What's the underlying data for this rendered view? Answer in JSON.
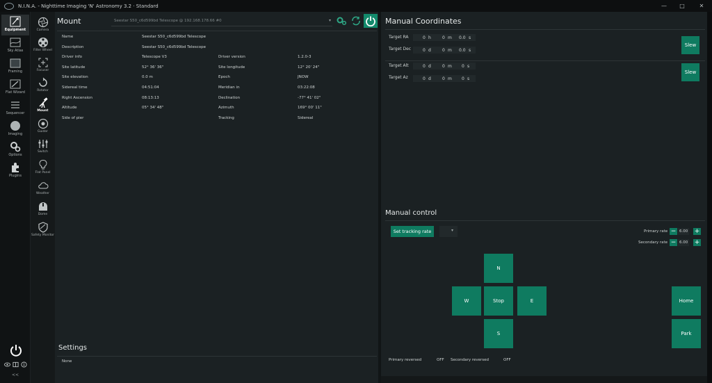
{
  "window": {
    "title": "N.I.N.A. - Nighttime Imaging 'N' Astronomy 3.2  ·  Standard",
    "minimize": "—",
    "maximize": "□",
    "close": "✕"
  },
  "main_nav": [
    {
      "label": "Equipment",
      "icon": "equipment-icon",
      "active": true
    },
    {
      "label": "Sky Atlas",
      "icon": "sky-atlas-icon"
    },
    {
      "label": "Framing",
      "icon": "framing-icon"
    },
    {
      "label": "Flat Wizard",
      "icon": "flat-wizard-icon"
    },
    {
      "label": "Sequencer",
      "icon": "sequencer-icon"
    },
    {
      "label": "Imaging",
      "icon": "imaging-icon"
    },
    {
      "label": "Options",
      "icon": "options-icon"
    },
    {
      "label": "Plugins",
      "icon": "plugins-icon"
    }
  ],
  "main_nav_bottom": {
    "collapse": "<<"
  },
  "sub_nav": [
    {
      "label": "Camera",
      "icon": "camera-icon"
    },
    {
      "label": "Filter Wheel",
      "icon": "filter-wheel-icon"
    },
    {
      "label": "Focuser",
      "icon": "focuser-icon"
    },
    {
      "label": "Rotator",
      "icon": "rotator-icon"
    },
    {
      "label": "Mount",
      "icon": "mount-icon",
      "active": true
    },
    {
      "label": "Guider",
      "icon": "guider-icon"
    },
    {
      "label": "Switch",
      "icon": "switch-icon"
    },
    {
      "label": "Flat Panel",
      "icon": "flat-panel-icon"
    },
    {
      "label": "Weather",
      "icon": "weather-icon"
    },
    {
      "label": "Dome",
      "icon": "dome-icon"
    },
    {
      "label": "Safety Monitor",
      "icon": "safety-monitor-icon"
    }
  ],
  "mount": {
    "title": "Mount",
    "device_selector": "Seestar S50_c6d599bd Telescope @ 192.168.178.66 #0",
    "settings_title": "Settings",
    "settings_value": "None",
    "info": {
      "name_label": "Name",
      "name": "Seestar S50_c6d599bd Telescope",
      "desc_label": "Description",
      "desc": "Seestar S50_c6d599bd Telescope",
      "driver_info_label": "Driver info",
      "driver_info": "Telescope V3",
      "driver_version_label": "Driver version",
      "driver_version": "1.2.0-3",
      "site_lat_label": "Site latitude",
      "site_lat": "52° 36' 36\"",
      "site_lon_label": "Site longitude",
      "site_lon": "12° 20' 24\"",
      "site_elev_label": "Site elevation",
      "site_elev": "0.0 m",
      "epoch_label": "Epoch",
      "epoch": "JNOW",
      "sidereal_label": "Sidereal time",
      "sidereal": "04:51:04",
      "meridian_label": "Meridian in",
      "meridian": "03:22:08",
      "ra_label": "Right Ascension",
      "ra": "08:13:13",
      "dec_label": "Declination",
      "dec": "-77° 41' 02\"",
      "alt_label": "Altitude",
      "alt": "05° 34' 48\"",
      "az_label": "Azimuth",
      "az": "169° 00' 11\"",
      "pier_label": "Side of pier",
      "pier": "",
      "tracking_label": "Tracking",
      "tracking": "Sidereal"
    }
  },
  "manual_coordinates": {
    "title": "Manual Coordinates",
    "ra_label": "Target RA",
    "ra_h": "0",
    "ra_h_unit": "h",
    "ra_m": "0",
    "ra_m_unit": "m",
    "ra_s": "0.0",
    "ra_s_unit": "s",
    "dec_label": "Target Dec",
    "dec_d": "0",
    "dec_d_unit": "d",
    "dec_m": "0",
    "dec_m_unit": "m",
    "dec_s": "0.0",
    "dec_s_unit": "s",
    "alt_label": "Target Alt",
    "alt_d": "0",
    "alt_d_unit": "d",
    "alt_m": "0",
    "alt_m_unit": "m",
    "alt_s": "0",
    "alt_s_unit": "s",
    "az_label": "Target Az",
    "az_d": "0",
    "az_d_unit": "d",
    "az_m": "0",
    "az_m_unit": "m",
    "az_s": "0",
    "az_s_unit": "s",
    "slew_label": "Slew"
  },
  "manual_control": {
    "title": "Manual control",
    "set_tracking_rate": "Set tracking rate",
    "primary_rate_label": "Primary rate",
    "primary_rate": "6.00",
    "secondary_rate_label": "Secondary rate",
    "secondary_rate": "6.00",
    "north": "N",
    "west": "W",
    "stop": "Stop",
    "east": "E",
    "south": "S",
    "home": "Home",
    "park": "Park",
    "primary_reversed_label": "Primary reversed",
    "primary_reversed": "OFF",
    "secondary_reversed_label": "Secondary reversed",
    "secondary_reversed": "OFF"
  },
  "colors": {
    "accent": "#0f7b60",
    "panel": "#1b2123",
    "background": "#0b0d0e"
  }
}
